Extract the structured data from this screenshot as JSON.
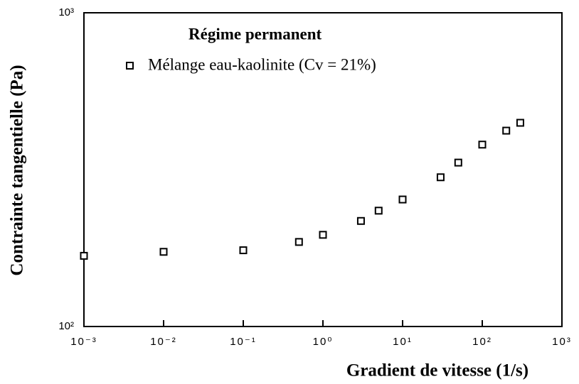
{
  "chart_data": {
    "type": "scatter",
    "xlabel": "Gradient de vitesse (1/s)",
    "ylabel": "Contrainte tangentielle (Pa)",
    "legend_title": "Régime permanent",
    "xscale": "log",
    "yscale": "log",
    "xlim": [
      0.001,
      1000
    ],
    "ylim": [
      100,
      1000
    ],
    "xticks": [
      {
        "value": 0.001,
        "label": "10⁻³"
      },
      {
        "value": 0.01,
        "label": "10⁻²"
      },
      {
        "value": 0.1,
        "label": "10⁻¹"
      },
      {
        "value": 1,
        "label": "10⁰"
      },
      {
        "value": 10,
        "label": "10¹"
      },
      {
        "value": 100,
        "label": "10²"
      },
      {
        "value": 1000,
        "label": "10³"
      }
    ],
    "yticks": [
      {
        "value": 100,
        "label": "10²"
      },
      {
        "value": 1000,
        "label": "10³"
      }
    ],
    "series": [
      {
        "name": "Mélange eau-kaolinite (Cv = 21%)",
        "color": "#000000",
        "x": [
          0.001,
          0.01,
          0.1,
          0.5,
          1,
          3,
          5,
          10,
          30,
          50,
          100,
          200,
          300
        ],
        "values": [
          168,
          173,
          175,
          186,
          196,
          217,
          234,
          254,
          299,
          333,
          380,
          421,
          446
        ]
      }
    ]
  }
}
